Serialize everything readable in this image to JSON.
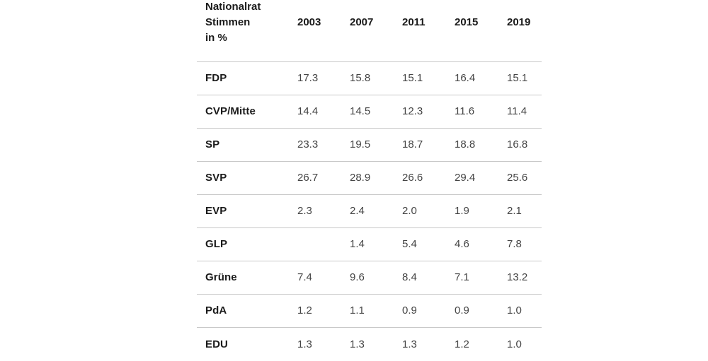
{
  "chart_data": {
    "type": "table",
    "header": {
      "title_lines": [
        "Nationalrat",
        "Stimmen",
        "in %"
      ]
    },
    "columns": [
      "2003",
      "2007",
      "2011",
      "2015",
      "2019"
    ],
    "rows": [
      {
        "party": "FDP",
        "values": [
          "17.3",
          "15.8",
          "15.1",
          "16.4",
          "15.1"
        ]
      },
      {
        "party": "CVP/Mitte",
        "values": [
          "14.4",
          "14.5",
          "12.3",
          "11.6",
          "11.4"
        ]
      },
      {
        "party": "SP",
        "values": [
          "23.3",
          "19.5",
          "18.7",
          "18.8",
          "16.8"
        ]
      },
      {
        "party": "SVP",
        "values": [
          "26.7",
          "28.9",
          "26.6",
          "29.4",
          "25.6"
        ]
      },
      {
        "party": "EVP",
        "values": [
          "2.3",
          "2.4",
          "2.0",
          "1.9",
          "2.1"
        ]
      },
      {
        "party": "GLP",
        "values": [
          "",
          "1.4",
          "5.4",
          "4.6",
          "7.8"
        ]
      },
      {
        "party": "Grüne",
        "values": [
          "7.4",
          "9.6",
          "8.4",
          "7.1",
          "13.2"
        ]
      },
      {
        "party": "PdA",
        "values": [
          "1.2",
          "1.1",
          "0.9",
          "0.9",
          "1.0"
        ]
      },
      {
        "party": "EDU",
        "values": [
          "1.3",
          "1.3",
          "1.3",
          "1.2",
          "1.0"
        ]
      }
    ]
  }
}
